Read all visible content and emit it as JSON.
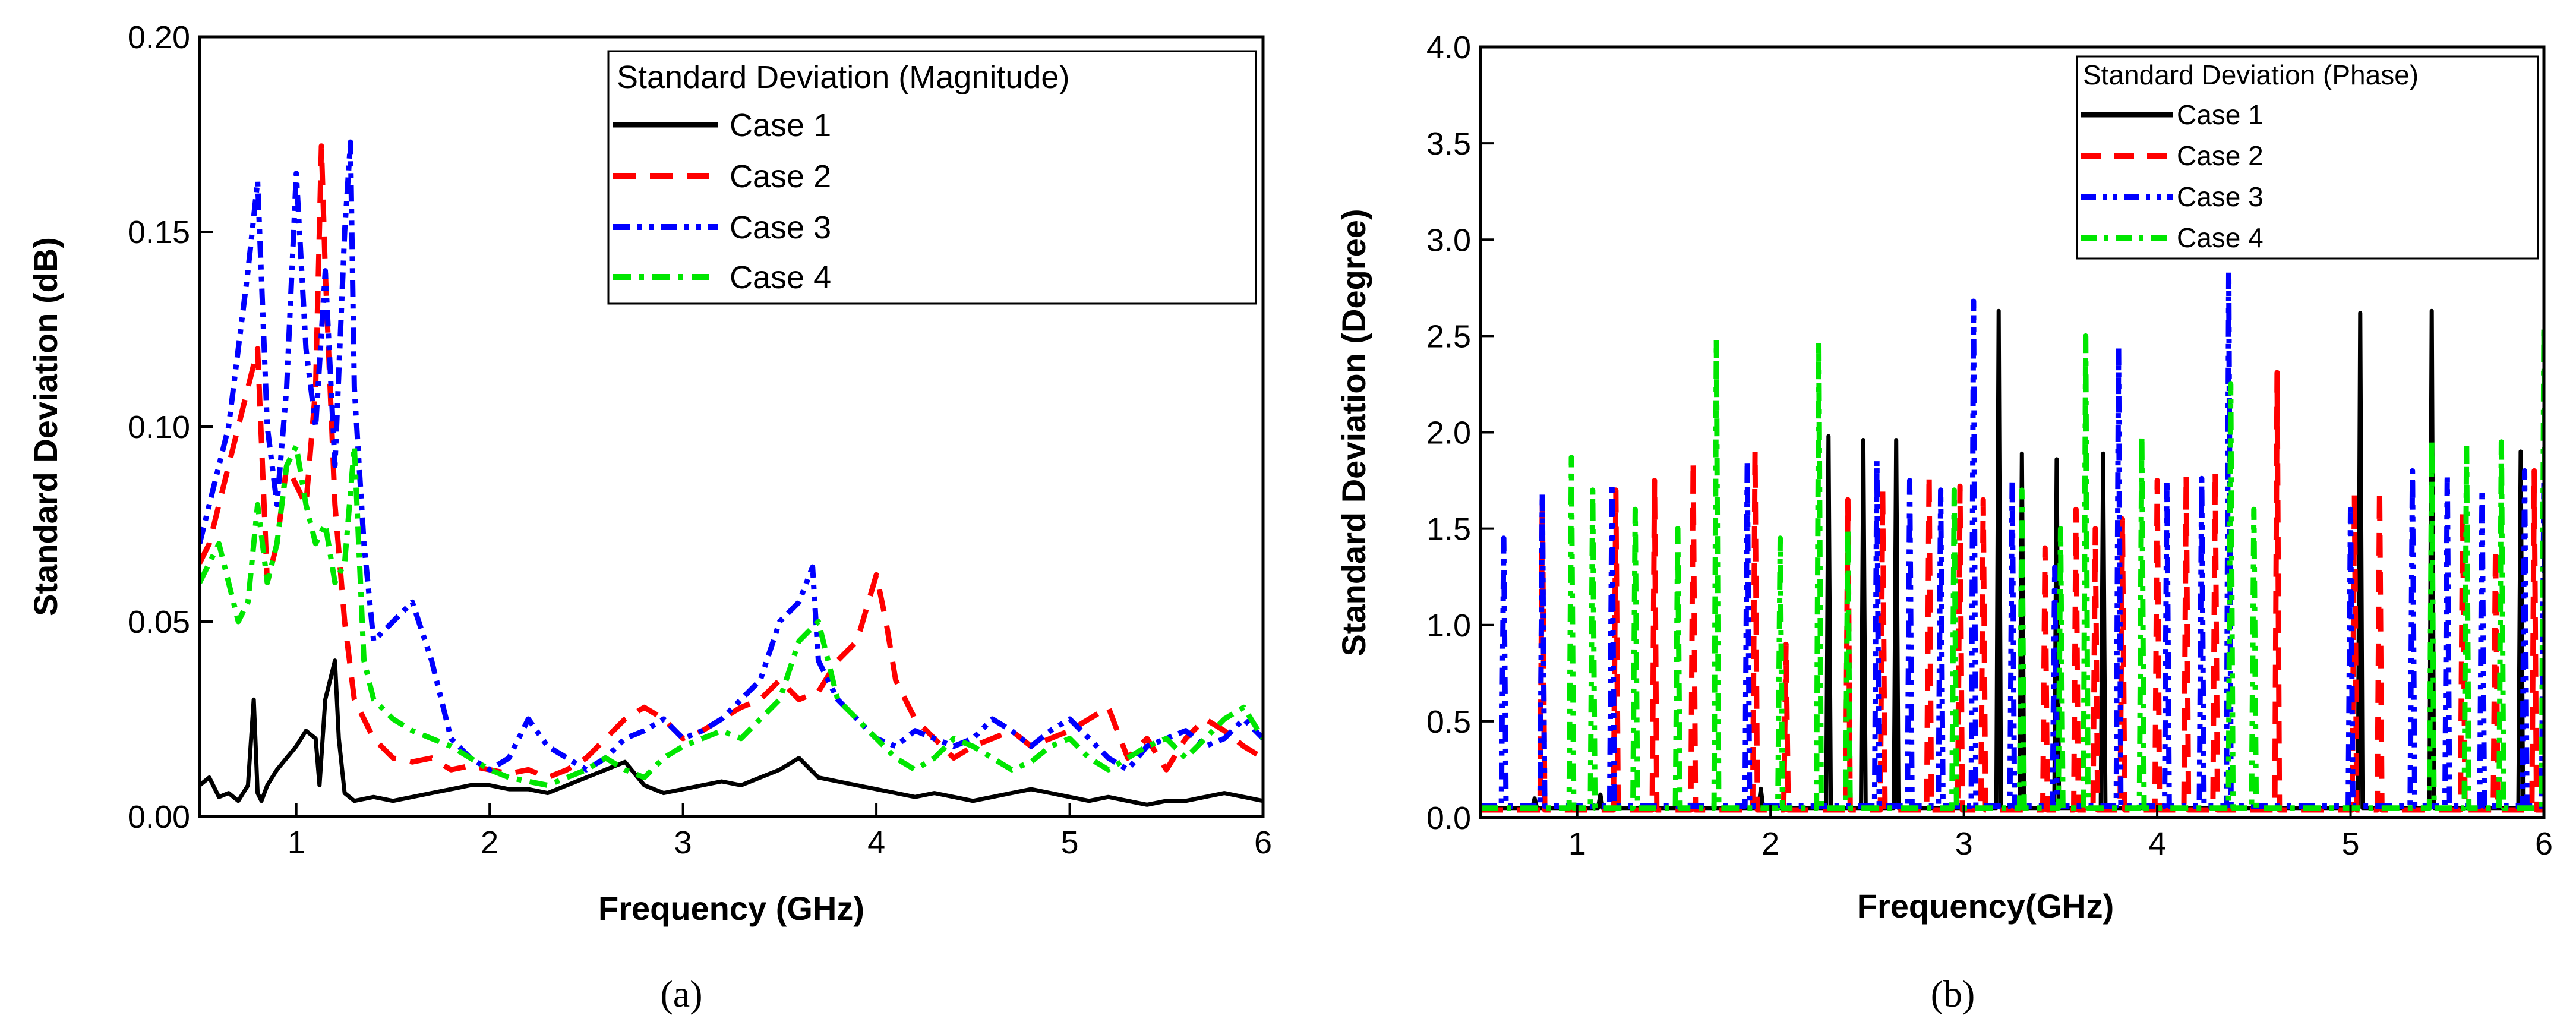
{
  "chart_data": [
    {
      "type": "line",
      "panel_label": "(a)",
      "title": "",
      "xlabel": "Frequency (GHz)",
      "ylabel": "Standard Deviation (dB)",
      "xlim": [
        0.5,
        6
      ],
      "ylim": [
        0,
        0.2
      ],
      "xticks": [
        1,
        2,
        3,
        4,
        5,
        6
      ],
      "xtick_labels": [
        "1",
        "2",
        "3",
        "4",
        "5",
        "6"
      ],
      "yticks": [
        0,
        0.05,
        0.1,
        0.15,
        0.2
      ],
      "ytick_labels": [
        "0.00",
        "0.05",
        "0.10",
        "0.15",
        "0.20"
      ],
      "grid": false,
      "legend": {
        "title": "Standard Deviation (Magnitude)",
        "placement": "top-right",
        "entries": [
          "Case 1",
          "Case 2",
          "Case 3",
          "Case 4"
        ]
      },
      "series": [
        {
          "name": "Case 1",
          "color": "#000000",
          "dash": "solid",
          "x": [
            0.5,
            0.55,
            0.6,
            0.65,
            0.7,
            0.75,
            0.78,
            0.8,
            0.82,
            0.85,
            0.9,
            0.95,
            1.0,
            1.05,
            1.1,
            1.12,
            1.15,
            1.2,
            1.22,
            1.25,
            1.3,
            1.4,
            1.5,
            1.6,
            1.7,
            1.8,
            1.9,
            2.0,
            2.1,
            2.2,
            2.3,
            2.4,
            2.5,
            2.6,
            2.7,
            2.8,
            2.9,
            3.0,
            3.1,
            3.2,
            3.3,
            3.4,
            3.5,
            3.6,
            3.7,
            3.8,
            3.9,
            4.0,
            4.1,
            4.2,
            4.3,
            4.4,
            4.5,
            4.6,
            4.7,
            4.8,
            4.9,
            5.0,
            5.1,
            5.2,
            5.3,
            5.4,
            5.5,
            5.6,
            5.7,
            5.8,
            5.9,
            6.0
          ],
          "values": [
            0.008,
            0.01,
            0.005,
            0.006,
            0.004,
            0.008,
            0.03,
            0.006,
            0.004,
            0.008,
            0.012,
            0.015,
            0.018,
            0.022,
            0.02,
            0.008,
            0.03,
            0.04,
            0.02,
            0.006,
            0.004,
            0.005,
            0.004,
            0.005,
            0.006,
            0.007,
            0.008,
            0.008,
            0.007,
            0.007,
            0.006,
            0.008,
            0.01,
            0.012,
            0.014,
            0.008,
            0.006,
            0.007,
            0.008,
            0.009,
            0.008,
            0.01,
            0.012,
            0.015,
            0.01,
            0.009,
            0.008,
            0.007,
            0.006,
            0.005,
            0.006,
            0.005,
            0.004,
            0.005,
            0.006,
            0.007,
            0.006,
            0.005,
            0.004,
            0.005,
            0.004,
            0.003,
            0.004,
            0.004,
            0.005,
            0.006,
            0.005,
            0.004
          ]
        },
        {
          "name": "Case 2",
          "color": "#ff0000",
          "dash": "dash",
          "x": [
            0.5,
            0.55,
            0.6,
            0.65,
            0.7,
            0.75,
            0.8,
            0.85,
            0.9,
            0.95,
            1.0,
            1.05,
            1.1,
            1.13,
            1.15,
            1.2,
            1.25,
            1.3,
            1.4,
            1.5,
            1.6,
            1.7,
            1.8,
            1.9,
            2.0,
            2.1,
            2.2,
            2.3,
            2.4,
            2.5,
            2.6,
            2.7,
            2.8,
            2.9,
            3.0,
            3.1,
            3.2,
            3.3,
            3.4,
            3.5,
            3.6,
            3.7,
            3.8,
            3.9,
            4.0,
            4.05,
            4.1,
            4.2,
            4.3,
            4.4,
            4.5,
            4.6,
            4.7,
            4.8,
            4.9,
            5.0,
            5.1,
            5.2,
            5.3,
            5.4,
            5.5,
            5.6,
            5.7,
            5.8,
            5.9,
            6.0
          ],
          "values": [
            0.065,
            0.07,
            0.08,
            0.09,
            0.1,
            0.11,
            0.12,
            0.06,
            0.07,
            0.09,
            0.085,
            0.08,
            0.11,
            0.172,
            0.14,
            0.08,
            0.05,
            0.03,
            0.02,
            0.015,
            0.014,
            0.015,
            0.012,
            0.013,
            0.012,
            0.011,
            0.012,
            0.01,
            0.012,
            0.015,
            0.02,
            0.025,
            0.028,
            0.025,
            0.02,
            0.022,
            0.025,
            0.028,
            0.03,
            0.035,
            0.03,
            0.032,
            0.04,
            0.045,
            0.062,
            0.05,
            0.035,
            0.025,
            0.02,
            0.015,
            0.018,
            0.02,
            0.022,
            0.018,
            0.02,
            0.022,
            0.025,
            0.028,
            0.015,
            0.02,
            0.012,
            0.02,
            0.025,
            0.022,
            0.018,
            0.015
          ]
        },
        {
          "name": "Case 3",
          "color": "#0000ff",
          "dash": "dashdotdot",
          "x": [
            0.5,
            0.55,
            0.6,
            0.65,
            0.7,
            0.75,
            0.8,
            0.85,
            0.9,
            0.95,
            1.0,
            1.05,
            1.1,
            1.15,
            1.2,
            1.25,
            1.28,
            1.3,
            1.35,
            1.4,
            1.5,
            1.6,
            1.7,
            1.8,
            1.9,
            2.0,
            2.1,
            2.2,
            2.3,
            2.4,
            2.5,
            2.6,
            2.7,
            2.8,
            2.9,
            3.0,
            3.1,
            3.2,
            3.3,
            3.4,
            3.5,
            3.6,
            3.67,
            3.7,
            3.8,
            3.9,
            4.0,
            4.1,
            4.2,
            4.3,
            4.4,
            4.5,
            4.6,
            4.7,
            4.8,
            4.9,
            5.0,
            5.1,
            5.2,
            5.3,
            5.4,
            5.5,
            5.6,
            5.7,
            5.8,
            5.9,
            6.0
          ],
          "values": [
            0.07,
            0.08,
            0.09,
            0.1,
            0.12,
            0.14,
            0.163,
            0.1,
            0.08,
            0.11,
            0.165,
            0.12,
            0.1,
            0.14,
            0.09,
            0.15,
            0.173,
            0.11,
            0.07,
            0.045,
            0.05,
            0.055,
            0.04,
            0.02,
            0.015,
            0.012,
            0.015,
            0.025,
            0.018,
            0.015,
            0.012,
            0.015,
            0.02,
            0.022,
            0.025,
            0.02,
            0.022,
            0.025,
            0.03,
            0.035,
            0.05,
            0.055,
            0.064,
            0.04,
            0.03,
            0.025,
            0.02,
            0.018,
            0.022,
            0.02,
            0.018,
            0.02,
            0.025,
            0.022,
            0.018,
            0.022,
            0.025,
            0.02,
            0.015,
            0.012,
            0.018,
            0.02,
            0.022,
            0.018,
            0.02,
            0.025,
            0.02
          ]
        },
        {
          "name": "Case 4",
          "color": "#00e600",
          "dash": "dashdot",
          "x": [
            0.5,
            0.55,
            0.6,
            0.65,
            0.7,
            0.75,
            0.8,
            0.85,
            0.9,
            0.95,
            1.0,
            1.05,
            1.1,
            1.15,
            1.2,
            1.25,
            1.3,
            1.35,
            1.4,
            1.5,
            1.6,
            1.7,
            1.8,
            1.9,
            2.0,
            2.1,
            2.2,
            2.3,
            2.4,
            2.5,
            2.6,
            2.7,
            2.8,
            2.9,
            3.0,
            3.1,
            3.2,
            3.3,
            3.4,
            3.5,
            3.6,
            3.7,
            3.8,
            3.9,
            4.0,
            4.1,
            4.2,
            4.3,
            4.4,
            4.5,
            4.6,
            4.7,
            4.8,
            4.9,
            5.0,
            5.1,
            5.2,
            5.3,
            5.4,
            5.5,
            5.6,
            5.7,
            5.8,
            5.9,
            6.0
          ],
          "values": [
            0.06,
            0.065,
            0.07,
            0.06,
            0.05,
            0.055,
            0.08,
            0.06,
            0.07,
            0.09,
            0.095,
            0.08,
            0.07,
            0.075,
            0.06,
            0.065,
            0.095,
            0.04,
            0.03,
            0.025,
            0.022,
            0.02,
            0.018,
            0.015,
            0.012,
            0.01,
            0.009,
            0.008,
            0.01,
            0.012,
            0.015,
            0.012,
            0.01,
            0.015,
            0.018,
            0.02,
            0.022,
            0.02,
            0.025,
            0.03,
            0.045,
            0.05,
            0.03,
            0.025,
            0.02,
            0.015,
            0.012,
            0.015,
            0.02,
            0.018,
            0.015,
            0.012,
            0.014,
            0.018,
            0.02,
            0.015,
            0.012,
            0.015,
            0.018,
            0.02,
            0.015,
            0.02,
            0.025,
            0.028,
            0.02
          ]
        }
      ]
    },
    {
      "type": "line",
      "panel_label": "(b)",
      "title": "",
      "xlabel": "Frequency(GHz)",
      "ylabel": "Standard Deviation (Degree)",
      "xlim": [
        0.5,
        6
      ],
      "ylim": [
        0,
        4
      ],
      "xticks": [
        1,
        2,
        3,
        4,
        5,
        6
      ],
      "xtick_labels": [
        "1",
        "2",
        "3",
        "4",
        "5",
        "6"
      ],
      "yticks": [
        0,
        0.5,
        1,
        1.5,
        2,
        2.5,
        3,
        3.5,
        4
      ],
      "ytick_labels": [
        "0.0",
        "0.5",
        "1.0",
        "1.5",
        "2.0",
        "2.5",
        "3.0",
        "3.5",
        "4.0"
      ],
      "grid": false,
      "legend": {
        "title": "Standard Deviation (Phase)",
        "placement": "top-right",
        "entries": [
          "Case 1",
          "Case 2",
          "Case 3",
          "Case 4"
        ]
      },
      "series": [
        {
          "name": "Case 1",
          "color": "#000000",
          "dash": "solid",
          "baseline": 0.05,
          "spike_width": 0.012,
          "spikes": [
            [
              0.78,
              0.1
            ],
            [
              1.12,
              0.12
            ],
            [
              1.95,
              0.15
            ],
            [
              2.3,
              1.98
            ],
            [
              2.48,
              1.96
            ],
            [
              2.65,
              1.96
            ],
            [
              3.18,
              2.63
            ],
            [
              3.3,
              1.89
            ],
            [
              3.48,
              1.86
            ],
            [
              3.72,
              1.89
            ],
            [
              5.05,
              2.62
            ],
            [
              5.42,
              2.63
            ],
            [
              5.88,
              1.9
            ]
          ]
        },
        {
          "name": "Case 2",
          "color": "#ff0000",
          "dash": "dash",
          "baseline": 0.04,
          "spike_width": 0.012,
          "spikes": [
            [
              0.82,
              1.65
            ],
            [
              1.2,
              1.7
            ],
            [
              1.4,
              1.75
            ],
            [
              1.6,
              1.85
            ],
            [
              1.92,
              1.9
            ],
            [
              2.08,
              0.9
            ],
            [
              2.4,
              1.65
            ],
            [
              2.58,
              1.7
            ],
            [
              2.82,
              1.78
            ],
            [
              2.98,
              1.72
            ],
            [
              3.1,
              1.65
            ],
            [
              3.42,
              1.4
            ],
            [
              3.58,
              1.6
            ],
            [
              3.68,
              1.5
            ],
            [
              3.82,
              1.55
            ],
            [
              4.0,
              1.75
            ],
            [
              4.15,
              1.78
            ],
            [
              4.3,
              1.8
            ],
            [
              4.62,
              2.31
            ],
            [
              5.02,
              1.68
            ],
            [
              5.15,
              1.7
            ],
            [
              5.58,
              1.6
            ],
            [
              5.75,
              1.4
            ],
            [
              5.95,
              1.8
            ]
          ]
        },
        {
          "name": "Case 3",
          "color": "#0000ff",
          "dash": "dashdotdot",
          "baseline": 0.06,
          "spike_width": 0.012,
          "spikes": [
            [
              0.62,
              1.45
            ],
            [
              0.82,
              1.68
            ],
            [
              1.18,
              1.73
            ],
            [
              1.88,
              1.85
            ],
            [
              2.55,
              1.85
            ],
            [
              2.72,
              1.75
            ],
            [
              2.88,
              1.7
            ],
            [
              3.05,
              2.68
            ],
            [
              3.25,
              1.75
            ],
            [
              3.47,
              1.3
            ],
            [
              3.8,
              2.44
            ],
            [
              4.05,
              1.75
            ],
            [
              4.23,
              1.76
            ],
            [
              4.37,
              2.83
            ],
            [
              5.0,
              1.6
            ],
            [
              5.32,
              1.8
            ],
            [
              5.5,
              1.78
            ],
            [
              5.68,
              1.7
            ],
            [
              5.9,
              1.8
            ],
            [
              6.0,
              1.75
            ]
          ]
        },
        {
          "name": "Case 4",
          "color": "#00e600",
          "dash": "dashdot",
          "baseline": 0.05,
          "spike_width": 0.012,
          "spikes": [
            [
              0.97,
              1.87
            ],
            [
              1.08,
              1.7
            ],
            [
              1.3,
              1.6
            ],
            [
              1.52,
              1.5
            ],
            [
              1.72,
              2.48
            ],
            [
              2.05,
              1.45
            ],
            [
              2.25,
              2.47
            ],
            [
              2.4,
              1.5
            ],
            [
              2.95,
              1.7
            ],
            [
              3.3,
              1.7
            ],
            [
              3.5,
              1.5
            ],
            [
              3.63,
              2.5
            ],
            [
              3.92,
              1.98
            ],
            [
              4.38,
              2.25
            ],
            [
              4.5,
              1.6
            ],
            [
              5.42,
              1.96
            ],
            [
              5.6,
              1.93
            ],
            [
              5.78,
              1.95
            ],
            [
              6.0,
              2.55
            ]
          ]
        }
      ]
    }
  ]
}
